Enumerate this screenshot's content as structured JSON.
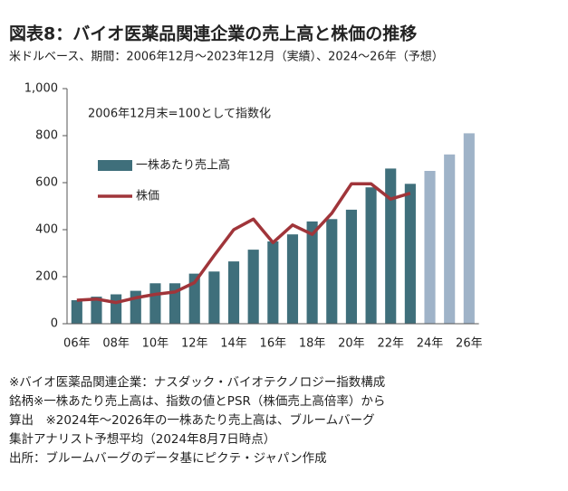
{
  "chart_data": {
    "type": "bar_line",
    "title": "図表8：バイオ医薬品関連企業の売上高と株価の推移",
    "subtitle": "米ドルベース、期間：2006年12月～2023年12月（実績）、2024～26年（予想）",
    "annotation": "2006年12月末=100として指数化",
    "categories": [
      "06年",
      null,
      "08年",
      null,
      "10年",
      null,
      "12年",
      null,
      "14年",
      null,
      "16年",
      null,
      "18年",
      null,
      "20年",
      null,
      "22年",
      null,
      "24年",
      null,
      "26年"
    ],
    "series": [
      {
        "name": "一株あたり売上高",
        "type": "bar",
        "color": "#3f6f7b",
        "point_colors": [
          "#3f6f7b",
          "#3f6f7b",
          "#3f6f7b",
          "#3f6f7b",
          "#3f6f7b",
          "#3f6f7b",
          "#3f6f7b",
          "#3f6f7b",
          "#3f6f7b",
          "#3f6f7b",
          "#3f6f7b",
          "#3f6f7b",
          "#3f6f7b",
          "#3f6f7b",
          "#3f6f7b",
          "#3f6f7b",
          "#3f6f7b",
          "#3f6f7b",
          "#9fb3c8",
          "#9fb3c8",
          "#9fb3c8"
        ],
        "values": [
          100,
          115,
          125,
          140,
          172,
          172,
          213,
          222,
          265,
          315,
          350,
          380,
          435,
          445,
          485,
          580,
          660,
          595,
          650,
          720,
          810
        ]
      },
      {
        "name": "株価",
        "type": "line",
        "color": "#a0353a",
        "values": [
          100,
          105,
          90,
          110,
          125,
          135,
          175,
          290,
          400,
          445,
          345,
          420,
          380,
          470,
          595,
          595,
          530,
          555,
          null,
          null,
          null
        ]
      }
    ],
    "ylim": [
      0,
      1000
    ],
    "yticks": [
      0,
      200,
      400,
      600,
      800,
      {
        "value": 1000,
        "label": "1,000"
      }
    ],
    "grid": false,
    "notes": [
      "※バイオ医薬品関連企業：ナスダック・バイオテクノロジー指数構成",
      "銘柄※一株あたり売上高は、指数の値とPSR（株価売上高倍率）から",
      "算出　※2024年～2026年の一株あたり売上高は、ブルームバーグ",
      "集計アナリスト予想平均（2024年8月7日時点）",
      "出所：ブルームバーグのデータ基にピクテ・ジャパン作成"
    ]
  }
}
